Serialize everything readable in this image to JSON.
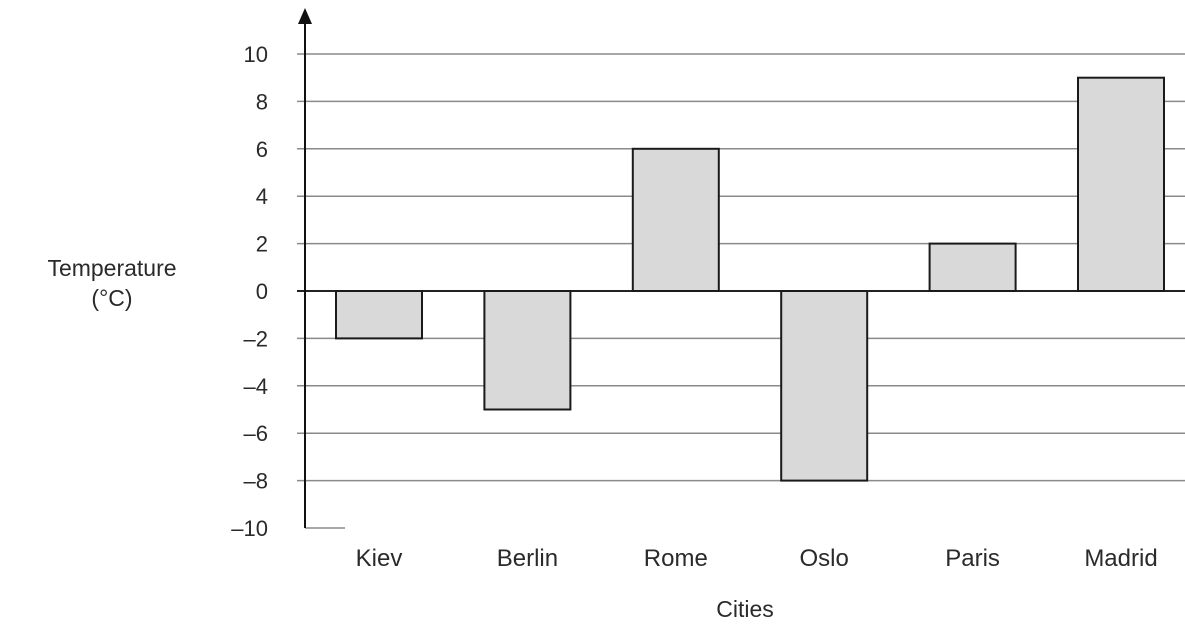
{
  "chart_data": {
    "type": "bar",
    "categories": [
      "Kiev",
      "Berlin",
      "Rome",
      "Oslo",
      "Paris",
      "Madrid"
    ],
    "values": [
      -2,
      -5,
      6,
      -8,
      2,
      9
    ],
    "title": "",
    "xlabel": "Cities",
    "ylabel_lines": [
      "Temperature",
      "(°C)"
    ],
    "ylim": [
      -10,
      10
    ],
    "yticks": [
      "10",
      "8",
      "6",
      "4",
      "2",
      "0",
      "–2",
      "–4",
      "–6",
      "–8",
      "–10"
    ],
    "ytick_values": [
      10,
      8,
      6,
      4,
      2,
      0,
      -2,
      -4,
      -6,
      -8,
      -10
    ],
    "grid": true,
    "legend": "none",
    "colors": {
      "bar_fill": "#d9d9d9",
      "bar_stroke": "#1a1a1a",
      "grid": "#8a8a8a"
    }
  }
}
